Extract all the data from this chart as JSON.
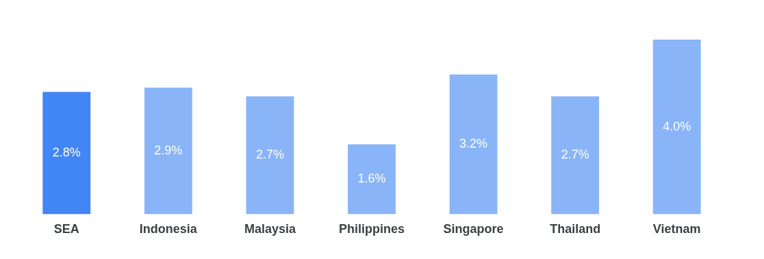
{
  "chart_data": {
    "type": "bar",
    "categories": [
      "SEA",
      "Indonesia",
      "Malaysia",
      "Philippines",
      "Singapore",
      "Thailand",
      "Vietnam"
    ],
    "values": [
      2.8,
      2.9,
      2.7,
      1.6,
      3.2,
      2.7,
      4.0
    ],
    "colors": [
      "#4285f4",
      "#8ab4f8",
      "#8ab4f8",
      "#8ab4f8",
      "#8ab4f8",
      "#8ab4f8",
      "#8ab4f8"
    ],
    "value_labels": [
      "2.8%",
      "2.9%",
      "2.7%",
      "1.6%",
      "3.2%",
      "2.7%",
      "4.0%"
    ],
    "grid": false,
    "legend": false,
    "tick_labels": "x"
  }
}
